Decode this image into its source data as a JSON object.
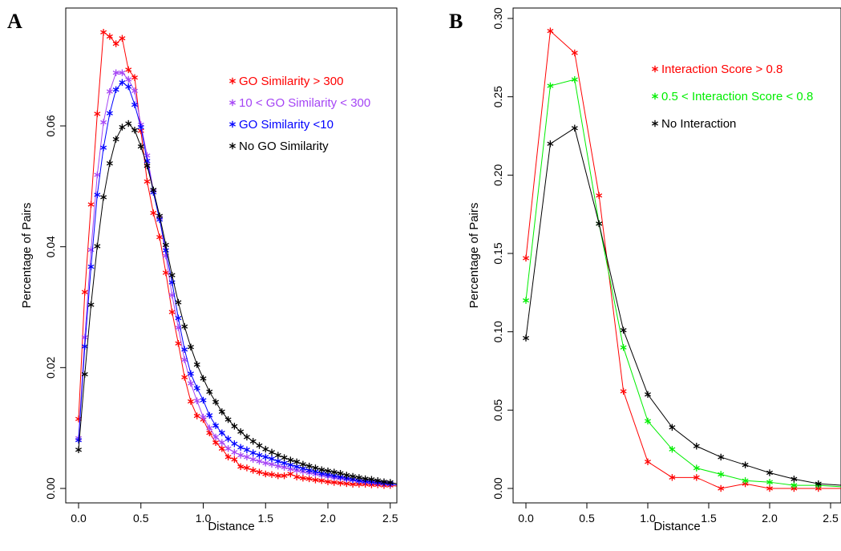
{
  "chart_data": [
    {
      "panel": "A",
      "type": "line",
      "xlabel": "Distance",
      "ylabel": "Percentage of Pairs",
      "xlim": [
        -0.05,
        2.6
      ],
      "ylim": [
        -0.002,
        0.08
      ],
      "xticks": [
        0.0,
        0.5,
        1.0,
        1.5,
        2.0,
        2.5
      ],
      "xtick_labels": [
        "0.0",
        "0.5",
        "1.0",
        "1.5",
        "2.0",
        "2.5"
      ],
      "yticks": [
        0.0,
        0.02,
        0.04,
        0.06
      ],
      "ytick_labels": [
        "0.00",
        "0.02",
        "0.04",
        "0.06"
      ],
      "marker": "asterisk",
      "legend_position": "top-right",
      "x": [
        0.0,
        0.05,
        0.1,
        0.15,
        0.2,
        0.25,
        0.3,
        0.35,
        0.4,
        0.45,
        0.5,
        0.55,
        0.6,
        0.65,
        0.7,
        0.75,
        0.8,
        0.85,
        0.9,
        0.95,
        1.0,
        1.05,
        1.1,
        1.15,
        1.2,
        1.25,
        1.3,
        1.35,
        1.4,
        1.45,
        1.5,
        1.55,
        1.6,
        1.65,
        1.7,
        1.75,
        1.8,
        1.85,
        1.9,
        1.95,
        2.0,
        2.05,
        2.1,
        2.15,
        2.2,
        2.25,
        2.3,
        2.35,
        2.4,
        2.45,
        2.5,
        2.55
      ],
      "series": [
        {
          "name": "GO Similarity > 300",
          "color": "#ff0000",
          "values": [
            0.0115,
            0.0325,
            0.047,
            0.062,
            0.0755,
            0.0748,
            0.0736,
            0.0745,
            0.0693,
            0.068,
            0.0592,
            0.0508,
            0.0456,
            0.0416,
            0.0357,
            0.0292,
            0.024,
            0.0184,
            0.0144,
            0.012,
            0.0114,
            0.0092,
            0.0076,
            0.0066,
            0.0052,
            0.0048,
            0.0036,
            0.0034,
            0.003,
            0.0027,
            0.0024,
            0.0023,
            0.0021,
            0.0021,
            0.0024,
            0.0019,
            0.0017,
            0.0016,
            0.0014,
            0.0013,
            0.0011,
            0.001,
            0.0009,
            0.0008,
            0.0007,
            0.0007,
            0.0007,
            0.0006,
            0.0006,
            0.0005,
            0.0005,
            0.0004
          ]
        },
        {
          "name": "10 < GO Similarity < 300",
          "color": "#a545f5",
          "values": [
            0.0083,
            0.025,
            0.0395,
            0.0519,
            0.0606,
            0.0657,
            0.0688,
            0.0688,
            0.0677,
            0.0658,
            0.0602,
            0.0551,
            0.0493,
            0.0448,
            0.0385,
            0.032,
            0.0266,
            0.0213,
            0.0174,
            0.0145,
            0.0118,
            0.01,
            0.0085,
            0.0076,
            0.0066,
            0.006,
            0.0055,
            0.0052,
            0.0048,
            0.0045,
            0.0042,
            0.004,
            0.0037,
            0.0035,
            0.0032,
            0.003,
            0.0028,
            0.0026,
            0.0024,
            0.0022,
            0.002,
            0.0018,
            0.0017,
            0.0015,
            0.0014,
            0.0012,
            0.0011,
            0.001,
            0.0009,
            0.0008,
            0.0007,
            0.0006
          ]
        },
        {
          "name": "GO Similarity <10",
          "color": "#0000ff",
          "values": [
            0.008,
            0.0235,
            0.0367,
            0.0486,
            0.0564,
            0.0621,
            0.066,
            0.0672,
            0.0665,
            0.0635,
            0.0598,
            0.0542,
            0.049,
            0.0445,
            0.0394,
            0.0341,
            0.0282,
            0.023,
            0.019,
            0.0166,
            0.0146,
            0.0121,
            0.0104,
            0.0092,
            0.0082,
            0.0074,
            0.0068,
            0.0064,
            0.0059,
            0.0055,
            0.0052,
            0.0049,
            0.0045,
            0.0042,
            0.0039,
            0.0036,
            0.0033,
            0.003,
            0.0028,
            0.0025,
            0.0023,
            0.0021,
            0.0019,
            0.0017,
            0.0015,
            0.0013,
            0.0012,
            0.0011,
            0.001,
            0.0009,
            0.0008,
            0.0006
          ]
        },
        {
          "name": "No GO Similarity",
          "color": "#000000",
          "values": [
            0.0064,
            0.0189,
            0.0304,
            0.0401,
            0.0482,
            0.0538,
            0.0578,
            0.0598,
            0.0604,
            0.0593,
            0.0566,
            0.0534,
            0.0494,
            0.0451,
            0.0403,
            0.0353,
            0.0308,
            0.0268,
            0.0234,
            0.0205,
            0.0182,
            0.016,
            0.0143,
            0.0127,
            0.0114,
            0.0103,
            0.0094,
            0.0085,
            0.0078,
            0.0071,
            0.0065,
            0.006,
            0.0055,
            0.0051,
            0.0047,
            0.0044,
            0.004,
            0.0037,
            0.0034,
            0.0031,
            0.0029,
            0.0027,
            0.0025,
            0.0022,
            0.002,
            0.0018,
            0.0016,
            0.0015,
            0.0013,
            0.0011,
            0.001,
            0.0008
          ]
        }
      ]
    },
    {
      "panel": "B",
      "type": "line",
      "xlabel": "Distance",
      "ylabel": "Percentage of Pairs",
      "xlim": [
        -0.05,
        2.6
      ],
      "ylim": [
        -0.006,
        0.3
      ],
      "xticks": [
        0.0,
        0.5,
        1.0,
        1.5,
        2.0,
        2.5
      ],
      "xtick_labels": [
        "0.0",
        "0.5",
        "1.0",
        "1.5",
        "2.0",
        "2.5"
      ],
      "yticks": [
        0.0,
        0.05,
        0.1,
        0.15,
        0.2,
        0.25,
        0.3
      ],
      "ytick_labels": [
        "0.00",
        "0.05",
        "0.10",
        "0.15",
        "0.20",
        "0.25",
        "0.30"
      ],
      "marker": "asterisk",
      "legend_position": "top-right",
      "x": [
        0.0,
        0.2,
        0.4,
        0.6,
        0.8,
        1.0,
        1.2,
        1.4,
        1.6,
        1.8,
        2.0,
        2.2,
        2.4,
        2.6
      ],
      "series": [
        {
          "name": "Interaction Score > 0.8",
          "color": "#ff0000",
          "values": [
            0.147,
            0.292,
            0.278,
            0.187,
            0.062,
            0.017,
            0.007,
            0.007,
            0.0,
            0.003,
            0.0,
            0.0,
            0.0,
            0.0
          ]
        },
        {
          "name": "0.5 < Interaction Score < 0.8",
          "color": "#00ee00",
          "values": [
            0.12,
            0.257,
            0.261,
            0.169,
            0.09,
            0.043,
            0.025,
            0.013,
            0.009,
            0.005,
            0.004,
            0.002,
            0.002,
            0.001
          ]
        },
        {
          "name": "No Interaction",
          "color": "#000000",
          "values": [
            0.096,
            0.22,
            0.23,
            0.169,
            0.101,
            0.06,
            0.039,
            0.027,
            0.02,
            0.015,
            0.01,
            0.006,
            0.003,
            0.002
          ]
        }
      ]
    }
  ]
}
